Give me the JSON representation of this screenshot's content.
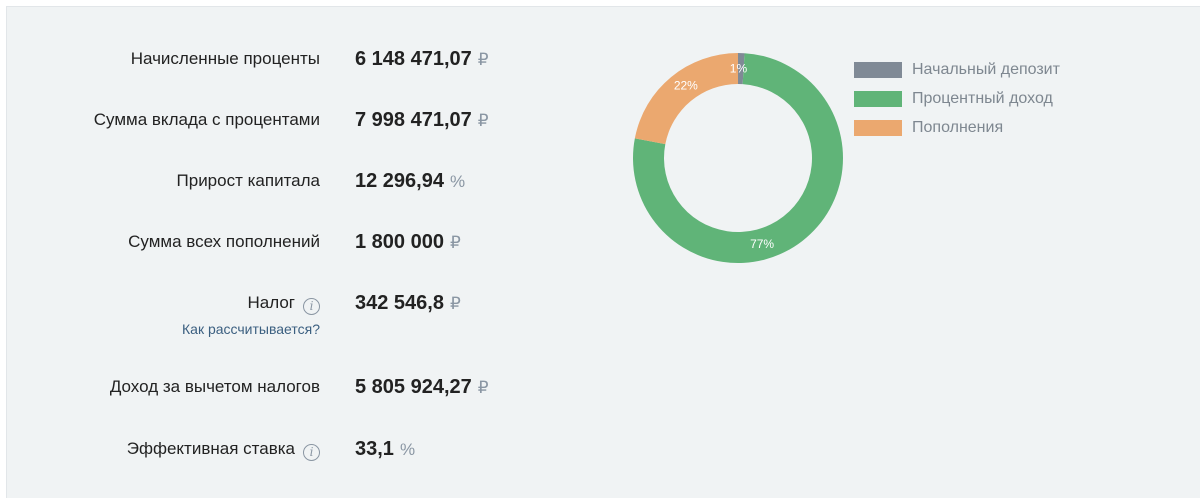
{
  "results": [
    {
      "label": "Начисленные проценты",
      "value": "6 148 471,07",
      "unit": "₽"
    },
    {
      "label": "Сумма вклада с процентами",
      "value": "7 998 471,07",
      "unit": "₽"
    },
    {
      "label": "Прирост капитала",
      "value": "12 296,94",
      "unit": "%"
    },
    {
      "label": "Сумма всех пополнений",
      "value": "1 800 000",
      "unit": "₽"
    },
    {
      "label": "Налог",
      "value": "342 546,8",
      "unit": "₽",
      "link": "Как рассчитывается?"
    },
    {
      "label": "Доход за вычетом налогов",
      "value": "5 805 924,27",
      "unit": "₽"
    },
    {
      "label": "Эффективная ставка",
      "value": "33,1",
      "unit": "%"
    }
  ],
  "info_icon_glyph": "i",
  "chart_data": {
    "type": "pie",
    "donut": true,
    "categories": [
      "Начальный депозит",
      "Процентный доход",
      "Пополнения"
    ],
    "values": [
      1,
      77,
      22
    ],
    "labels": [
      "1%",
      "77%",
      "22%"
    ],
    "colors": [
      "#808a96",
      "#60b478",
      "#eba86f"
    ],
    "legend_position": "right"
  }
}
